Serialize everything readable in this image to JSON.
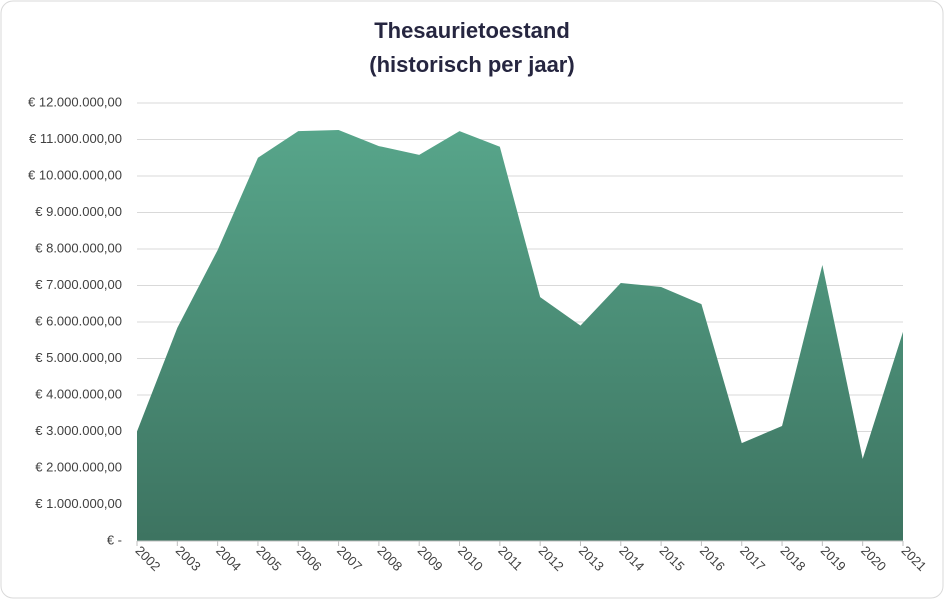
{
  "chart_data": {
    "type": "area",
    "title": "Thesaurietoestand",
    "subtitle": "(historisch per jaar)",
    "x": [
      2002,
      2003,
      2004,
      2005,
      2006,
      2007,
      2008,
      2009,
      2010,
      2011,
      2012,
      2013,
      2014,
      2015,
      2016,
      2017,
      2018,
      2019,
      2020,
      2021
    ],
    "values": [
      3000000,
      5840000,
      7970000,
      10500000,
      11230000,
      11260000,
      10820000,
      10580000,
      11230000,
      10800000,
      6680000,
      5900000,
      7070000,
      6960000,
      6490000,
      2680000,
      3150000,
      7560000,
      2250000,
      5730000
    ],
    "color": "#57a58a",
    "xlim": [
      2002,
      2021
    ],
    "xticks": [
      2002,
      2003,
      2004,
      2005,
      2006,
      2007,
      2008,
      2009,
      2010,
      2011,
      2012,
      2013,
      2014,
      2015,
      2016,
      2017,
      2018,
      2019,
      2020,
      2021
    ],
    "ylim": [
      0,
      12000000
    ],
    "yticks": [
      {
        "value": 0,
        "label": "€ -"
      },
      {
        "value": 1000000,
        "label": "€ 1.000.000,00"
      },
      {
        "value": 2000000,
        "label": "€ 2.000.000,00"
      },
      {
        "value": 3000000,
        "label": "€ 3.000.000,00"
      },
      {
        "value": 4000000,
        "label": "€ 4.000.000,00"
      },
      {
        "value": 5000000,
        "label": "€ 5.000.000,00"
      },
      {
        "value": 6000000,
        "label": "€ 6.000.000,00"
      },
      {
        "value": 7000000,
        "label": "€ 7.000.000,00"
      },
      {
        "value": 8000000,
        "label": "€ 8.000.000,00"
      },
      {
        "value": 9000000,
        "label": "€ 9.000.000,00"
      },
      {
        "value": 10000000,
        "label": "€ 10.000.000,00"
      },
      {
        "value": 11000000,
        "label": "€ 11.000.000,00"
      },
      {
        "value": 12000000,
        "label": "€ 12.000.000,00"
      }
    ],
    "grid": true
  }
}
